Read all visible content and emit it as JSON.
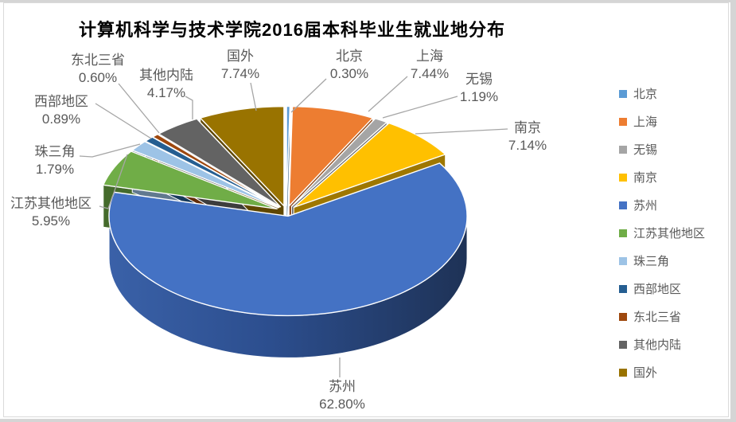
{
  "title": "计算机科学与技术学院2016届本科毕业生就业地分布",
  "chart_data": {
    "type": "pie",
    "style": "3d-exploded",
    "title": "计算机科学与技术学院2016届本科毕业生就业地分布",
    "unit": "percent",
    "legend_position": "right",
    "label_format": "name + percentage with leader lines",
    "leader_line_color": "#A6A6A6",
    "label_text_color": "#595959",
    "slices": [
      {
        "label": "北京",
        "value": 0.3,
        "display": "0.30%",
        "color": "#5B9BD5"
      },
      {
        "label": "上海",
        "value": 7.44,
        "display": "7.44%",
        "color": "#ED7D31"
      },
      {
        "label": "无锡",
        "value": 1.19,
        "display": "1.19%",
        "color": "#A5A5A5"
      },
      {
        "label": "南京",
        "value": 7.14,
        "display": "7.14%",
        "color": "#FFC000"
      },
      {
        "label": "苏州",
        "value": 62.8,
        "display": "62.80%",
        "color": "#4472C4"
      },
      {
        "label": "江苏其他地区",
        "value": 5.95,
        "display": "5.95%",
        "color": "#70AD47"
      },
      {
        "label": "珠三角",
        "value": 1.79,
        "display": "1.79%",
        "color": "#9DC3E6"
      },
      {
        "label": "西部地区",
        "value": 0.89,
        "display": "0.89%",
        "color": "#255E91"
      },
      {
        "label": "东北三省",
        "value": 0.6,
        "display": "0.60%",
        "color": "#9E480E"
      },
      {
        "label": "其他内陆",
        "value": 4.17,
        "display": "4.17%",
        "color": "#636363"
      },
      {
        "label": "国外",
        "value": 7.74,
        "display": "7.74%",
        "color": "#997300"
      }
    ]
  }
}
